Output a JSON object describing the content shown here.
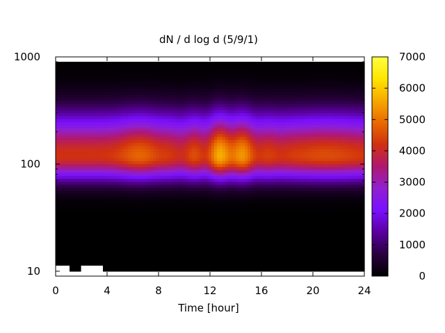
{
  "chart_data": {
    "type": "heatmap",
    "title": "dN / d log d (5/9/1)",
    "xlabel": "Time [hour]",
    "ylabel": "",
    "xlim": [
      0,
      24
    ],
    "ylim": [
      9,
      1000
    ],
    "y_scale": "log",
    "x_ticks": [
      "0",
      "4",
      "8",
      "12",
      "16",
      "20",
      "24"
    ],
    "x_tick_values": [
      0,
      4,
      8,
      12,
      16,
      20,
      24
    ],
    "y_ticks": [
      "10",
      "100",
      "1000"
    ],
    "y_tick_values": [
      10,
      100,
      1000
    ],
    "colorbar": {
      "min": 0,
      "max": 7000,
      "ticks": [
        "0",
        "1000",
        "2000",
        "3000",
        "4000",
        "5000",
        "6000",
        "7000"
      ],
      "tick_values": [
        0,
        1000,
        2000,
        3000,
        4000,
        5000,
        6000,
        7000
      ],
      "colormap": [
        "#000000",
        "#2a003f",
        "#5a00a0",
        "#7a10ff",
        "#9020d0",
        "#b01870",
        "#d03010",
        "#e86a00",
        "#f7a800",
        "#ffe600",
        "#ffff40"
      ]
    },
    "peak_diameter": 120,
    "diameter_range": [
      10,
      900
    ],
    "peak_value_typical": 4200,
    "peak_value_max": 5600,
    "notes_on_gaps": "white (no data) near the bottom edge"
  }
}
